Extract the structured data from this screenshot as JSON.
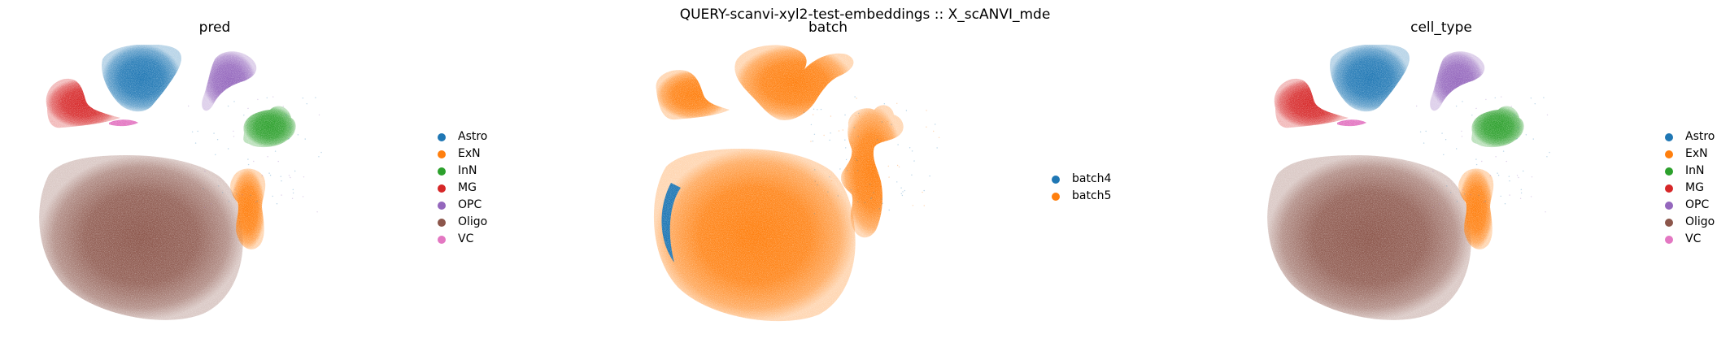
{
  "figure": {
    "suptitle": "QUERY-scanvi-xyl2-test-embeddings :: X_scANVI_mde"
  },
  "chart_data": [
    {
      "type": "scatter",
      "title": "pred",
      "xlabel": "",
      "ylabel": "",
      "grid": false,
      "legend_placement": "right",
      "legend": [
        {
          "label": "Astro",
          "color": "#1f77b4"
        },
        {
          "label": "ExN",
          "color": "#ff7f0e"
        },
        {
          "label": "InN",
          "color": "#2ca02c"
        },
        {
          "label": "MG",
          "color": "#d62728"
        },
        {
          "label": "OPC",
          "color": "#9467bd"
        },
        {
          "label": "Oligo",
          "color": "#8c564b"
        },
        {
          "label": "VC",
          "color": "#e377c2"
        }
      ]
    },
    {
      "type": "scatter",
      "title": "batch",
      "xlabel": "",
      "ylabel": "",
      "grid": false,
      "legend_placement": "right",
      "legend": [
        {
          "label": "batch4",
          "color": "#1f77b4"
        },
        {
          "label": "batch5",
          "color": "#ff7f0e"
        }
      ]
    },
    {
      "type": "scatter",
      "title": "cell_type",
      "xlabel": "",
      "ylabel": "",
      "grid": false,
      "legend_placement": "right",
      "legend": [
        {
          "label": "Astro",
          "color": "#1f77b4"
        },
        {
          "label": "ExN",
          "color": "#ff7f0e"
        },
        {
          "label": "InN",
          "color": "#2ca02c"
        },
        {
          "label": "MG",
          "color": "#d62728"
        },
        {
          "label": "OPC",
          "color": "#9467bd"
        },
        {
          "label": "Oligo",
          "color": "#8c564b"
        },
        {
          "label": "VC",
          "color": "#e377c2"
        }
      ]
    }
  ]
}
